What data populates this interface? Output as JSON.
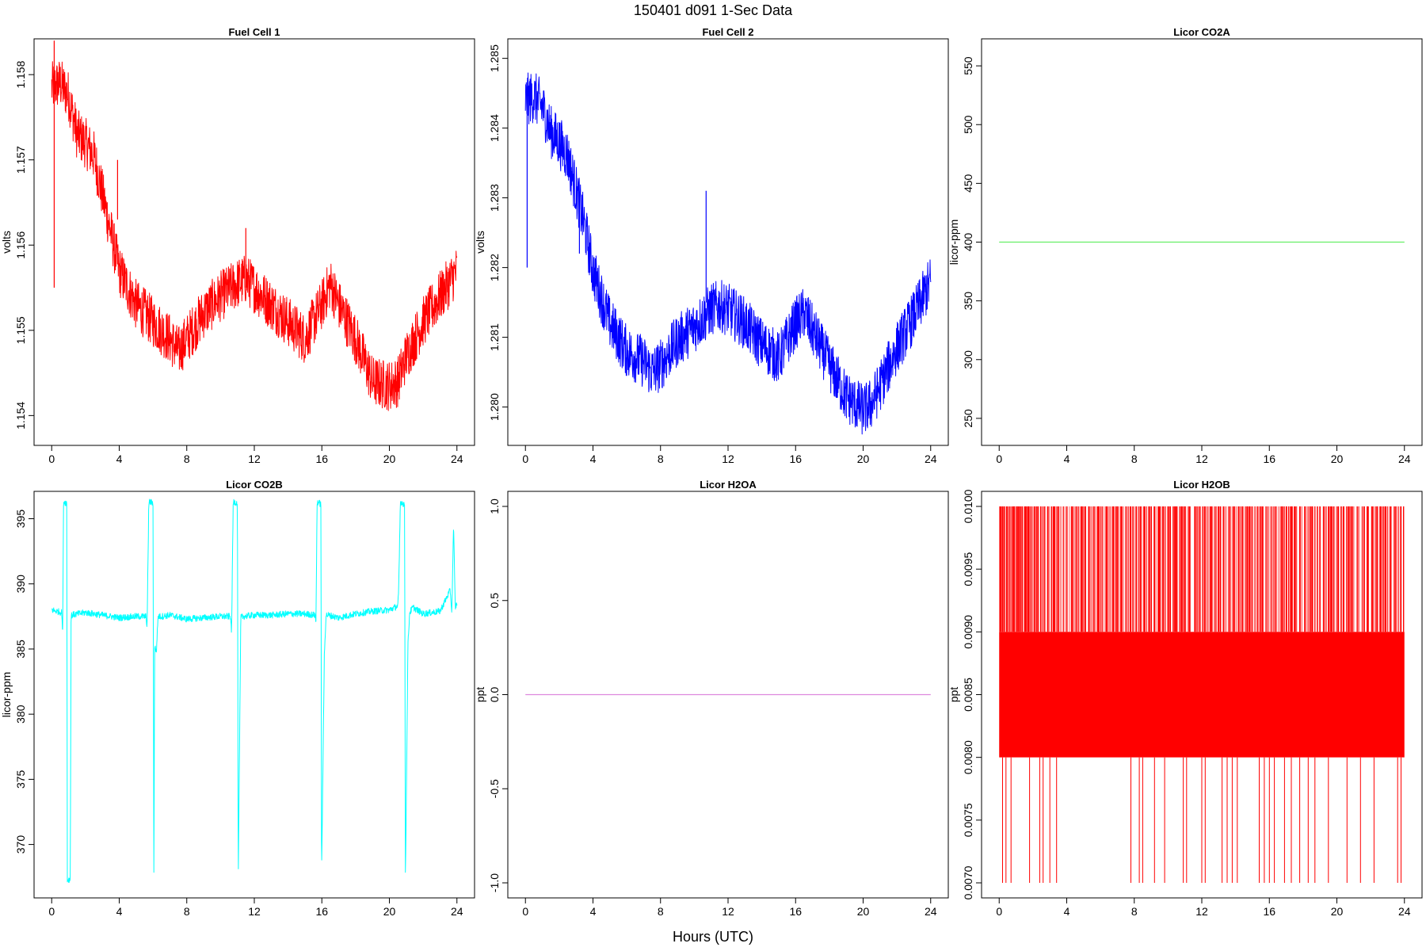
{
  "figure": {
    "title": "150401   d091   1-Sec Data",
    "xlabel": "Hours (UTC)"
  },
  "chart_data": [
    {
      "type": "line",
      "title": "Fuel Cell 1",
      "xlabel": "",
      "ylabel": "volts",
      "color": "#ff0000",
      "xlim": [
        0,
        24
      ],
      "xticks": [
        0,
        4,
        8,
        12,
        16,
        20,
        24
      ],
      "xtick_labels": [
        "0",
        "4",
        "8",
        "12",
        "16",
        "20",
        "24"
      ],
      "ylim": [
        1.15365,
        1.15842
      ],
      "yticks": [
        1.154,
        1.155,
        1.156,
        1.157,
        1.158
      ],
      "ytick_labels": [
        "1.154",
        "1.155",
        "1.156",
        "1.157",
        "1.158"
      ],
      "series": [
        {
          "x": [
            0,
            0.5,
            1,
            1.5,
            2,
            2.5,
            3,
            3.5,
            4,
            5,
            6,
            7,
            7.5,
            8,
            9,
            10,
            11,
            11.5,
            12,
            13,
            14,
            15,
            16,
            16.5,
            17,
            18,
            19,
            20,
            20.5,
            21,
            22,
            23,
            24
          ],
          "y": [
            1.15785,
            1.1579,
            1.15775,
            1.1573,
            1.1572,
            1.15705,
            1.1566,
            1.15615,
            1.1557,
            1.1553,
            1.1551,
            1.1549,
            1.15475,
            1.1549,
            1.1552,
            1.1554,
            1.15555,
            1.1556,
            1.1555,
            1.1553,
            1.1551,
            1.1549,
            1.1553,
            1.15555,
            1.1553,
            1.1549,
            1.1544,
            1.15435,
            1.1544,
            1.1547,
            1.1551,
            1.1554,
            1.1557
          ],
          "band": 0.0003,
          "spikes": [
            {
              "x": 0.15,
              "y0": 1.1555,
              "y1": 1.1584
            },
            {
              "x": 3.9,
              "y0": 1.1563,
              "y1": 1.157
            },
            {
              "x": 11.5,
              "y0": 1.1555,
              "y1": 1.1562
            }
          ]
        }
      ]
    },
    {
      "type": "line",
      "title": "Fuel Cell 2",
      "xlabel": "",
      "ylabel": "volts",
      "color": "#0000ff",
      "xlim": [
        0,
        24
      ],
      "xticks": [
        0,
        4,
        8,
        12,
        16,
        20,
        24
      ],
      "xtick_labels": [
        "0",
        "4",
        "8",
        "12",
        "16",
        "20",
        "24"
      ],
      "ylim": [
        1.27945,
        1.28528
      ],
      "yticks": [
        1.28,
        1.281,
        1.282,
        1.283,
        1.284,
        1.285
      ],
      "ytick_labels": [
        "1.280",
        "1.281",
        "1.282",
        "1.283",
        "1.284",
        "1.285"
      ],
      "series": [
        {
          "x": [
            0,
            0.5,
            1,
            1.5,
            2,
            2.5,
            3,
            3.5,
            4,
            5,
            6,
            7,
            7.5,
            8,
            9,
            10,
            11,
            11.5,
            12,
            13,
            14,
            15,
            16,
            16.5,
            17,
            18,
            19,
            20,
            20.5,
            21,
            22,
            23,
            24
          ],
          "y": [
            1.2844,
            1.28445,
            1.2843,
            1.28395,
            1.2838,
            1.2836,
            1.2831,
            1.2826,
            1.28195,
            1.2812,
            1.2808,
            1.28065,
            1.2805,
            1.2806,
            1.28095,
            1.28115,
            1.2814,
            1.28145,
            1.2814,
            1.2812,
            1.2809,
            1.2807,
            1.2812,
            1.28135,
            1.2811,
            1.2806,
            1.28015,
            1.27995,
            1.28005,
            1.2803,
            1.28085,
            1.2813,
            1.2818
          ],
          "band": 0.00038,
          "spikes": [
            {
              "x": 0.1,
              "y0": 1.282,
              "y1": 1.2846
            },
            {
              "x": 10.7,
              "y0": 1.2815,
              "y1": 1.2831
            },
            {
              "x": 3.2,
              "y0": 1.2822,
              "y1": 1.2829
            }
          ]
        }
      ]
    },
    {
      "type": "line",
      "title": "Licor CO2A",
      "xlabel": "",
      "ylabel": "licor-ppm",
      "color": "#66ee66",
      "xlim": [
        0,
        24
      ],
      "xticks": [
        0,
        4,
        8,
        12,
        16,
        20,
        24
      ],
      "xtick_labels": [
        "0",
        "4",
        "8",
        "12",
        "16",
        "20",
        "24"
      ],
      "ylim": [
        227,
        573
      ],
      "yticks": [
        250,
        300,
        350,
        400,
        450,
        500,
        550
      ],
      "ytick_labels": [
        "250",
        "300",
        "350",
        "400",
        "450",
        "500",
        "550"
      ],
      "series": [
        {
          "x": [
            0,
            24
          ],
          "y": [
            400,
            400
          ]
        }
      ]
    },
    {
      "type": "line",
      "title": "Licor CO2B",
      "xlabel": "",
      "ylabel": "licor-ppm",
      "color": "#00ffff",
      "xlim": [
        0,
        24
      ],
      "xticks": [
        0,
        4,
        8,
        12,
        16,
        20,
        24
      ],
      "xtick_labels": [
        "0",
        "4",
        "8",
        "12",
        "16",
        "20",
        "24"
      ],
      "ylim": [
        365.9,
        397.1
      ],
      "yticks": [
        370,
        375,
        380,
        385,
        390,
        395
      ],
      "ytick_labels": [
        "370",
        "375",
        "380",
        "385",
        "390",
        "395"
      ],
      "series": [
        {
          "x": [
            0,
            0.6,
            0.65,
            0.7,
            0.72,
            0.9,
            0.92,
            1.1,
            1.15,
            2,
            3,
            4,
            5,
            5.6,
            5.65,
            5.75,
            5.78,
            6.0,
            6.05,
            6.1,
            6.2,
            6.3,
            6.5,
            7,
            8,
            9,
            10,
            10.6,
            10.65,
            10.75,
            10.78,
            11.0,
            11.05,
            11.2,
            11.3,
            12,
            13,
            14,
            15,
            15.6,
            15.65,
            15.72,
            15.75,
            15.95,
            15.98,
            16.15,
            16.25,
            16.4,
            17,
            18,
            19,
            20,
            20.5,
            20.55,
            20.65,
            20.68,
            20.9,
            20.95,
            21.1,
            21.2,
            21.4,
            22,
            23,
            23.6,
            23.7,
            23.8,
            23.9,
            24
          ],
          "y": [
            388.0,
            387.8,
            386.0,
            396.2,
            396.3,
            396.2,
            367.3,
            367.3,
            387.6,
            387.8,
            387.6,
            387.4,
            387.5,
            387.5,
            386.5,
            396.2,
            396.3,
            396.2,
            367.2,
            385.2,
            384.8,
            387.5,
            387.5,
            387.6,
            387.3,
            387.4,
            387.5,
            387.5,
            386.0,
            396.2,
            396.3,
            396.2,
            367.2,
            387.4,
            387.5,
            387.6,
            387.6,
            387.7,
            387.7,
            387.6,
            387.0,
            396.2,
            396.3,
            396.1,
            367.2,
            384.7,
            387.6,
            387.6,
            387.4,
            387.7,
            387.9,
            388.0,
            388.3,
            389.5,
            396.2,
            396.3,
            396.1,
            367.2,
            385.3,
            387.8,
            388.2,
            387.7,
            387.9,
            389.5,
            387.8,
            394.6,
            388.2,
            388.5
          ],
          "band": 0.25
        }
      ]
    },
    {
      "type": "line",
      "title": "Licor H2OA",
      "xlabel": "",
      "ylabel": "ppt",
      "color": "#dd88dd",
      "xlim": [
        0,
        24
      ],
      "xticks": [
        0,
        4,
        8,
        12,
        16,
        20,
        24
      ],
      "xtick_labels": [
        "0",
        "4",
        "8",
        "12",
        "16",
        "20",
        "24"
      ],
      "ylim": [
        -1.08,
        1.08
      ],
      "yticks": [
        -1.0,
        -0.5,
        0.0,
        0.5,
        1.0
      ],
      "ytick_labels": [
        "-1.0",
        "-0.5",
        "0.0",
        "0.5",
        "1.0"
      ],
      "series": [
        {
          "x": [
            0,
            24
          ],
          "y": [
            0,
            0
          ]
        }
      ]
    },
    {
      "type": "line",
      "title": "Licor H2OB",
      "xlabel": "",
      "ylabel": "ppt",
      "color": "#ff0000",
      "xlim": [
        0,
        24
      ],
      "xticks": [
        0,
        4,
        8,
        12,
        16,
        20,
        24
      ],
      "xtick_labels": [
        "0",
        "4",
        "8",
        "12",
        "16",
        "20",
        "24"
      ],
      "ylim": [
        0.00688,
        0.01012
      ],
      "yticks": [
        0.007,
        0.0075,
        0.008,
        0.0085,
        0.009,
        0.0095,
        0.01
      ],
      "ytick_labels": [
        "0.0070",
        "0.0075",
        "0.0080",
        "0.0085",
        "0.0090",
        "0.0095",
        "0.0100"
      ],
      "series": [
        {
          "x": [
            0,
            24
          ],
          "y_band": [
            0.008,
            0.009
          ],
          "upper_level": 0.01,
          "lower_level": 0.007,
          "upper_spikes_x": [
            0.05,
            0.2,
            0.3,
            0.45,
            0.6,
            0.75,
            0.9,
            1.0,
            1.2,
            1.35,
            1.5,
            1.7,
            1.9,
            2.1,
            2.3,
            2.45,
            2.7,
            2.9,
            3.1,
            3.3,
            3.5,
            3.8,
            4.0,
            4.3,
            4.6,
            4.9,
            5.1,
            5.3,
            5.6,
            5.9,
            6.1,
            6.4,
            6.7,
            7.0,
            7.2,
            7.5,
            7.8,
            8.1,
            8.4,
            8.6,
            8.9,
            9.2,
            9.5,
            9.7,
            10.0,
            10.3,
            10.5,
            10.8,
            11.0,
            11.3,
            11.6,
            11.9,
            12.2,
            12.5,
            12.8,
            13.0,
            13.3,
            13.6,
            13.9,
            14.2,
            14.4,
            14.7,
            15.0,
            15.3,
            15.6,
            15.8,
            16.1,
            16.4,
            16.7,
            17.0,
            17.3,
            17.5,
            17.8,
            18.1,
            18.4,
            18.7,
            19.0,
            19.2,
            19.5,
            19.8,
            20.1,
            20.4,
            20.7,
            20.9,
            21.2,
            21.5,
            21.8,
            22.1,
            22.4,
            22.6,
            22.9,
            23.2,
            23.5,
            23.8,
            23.95
          ],
          "lower_spikes_x": [
            0.2,
            0.4,
            0.7,
            1.8,
            2.4,
            2.6,
            3.0,
            3.4,
            7.8,
            8.3,
            8.5,
            9.2,
            9.8,
            10.9,
            11.1,
            12.0,
            12.2,
            13.2,
            13.5,
            13.8,
            14.1,
            15.4,
            15.7,
            16.0,
            16.3,
            16.9,
            17.3,
            17.8,
            18.3,
            18.7,
            19.5,
            20.6,
            21.4,
            22.2,
            23.6,
            23.8
          ]
        }
      ]
    }
  ]
}
